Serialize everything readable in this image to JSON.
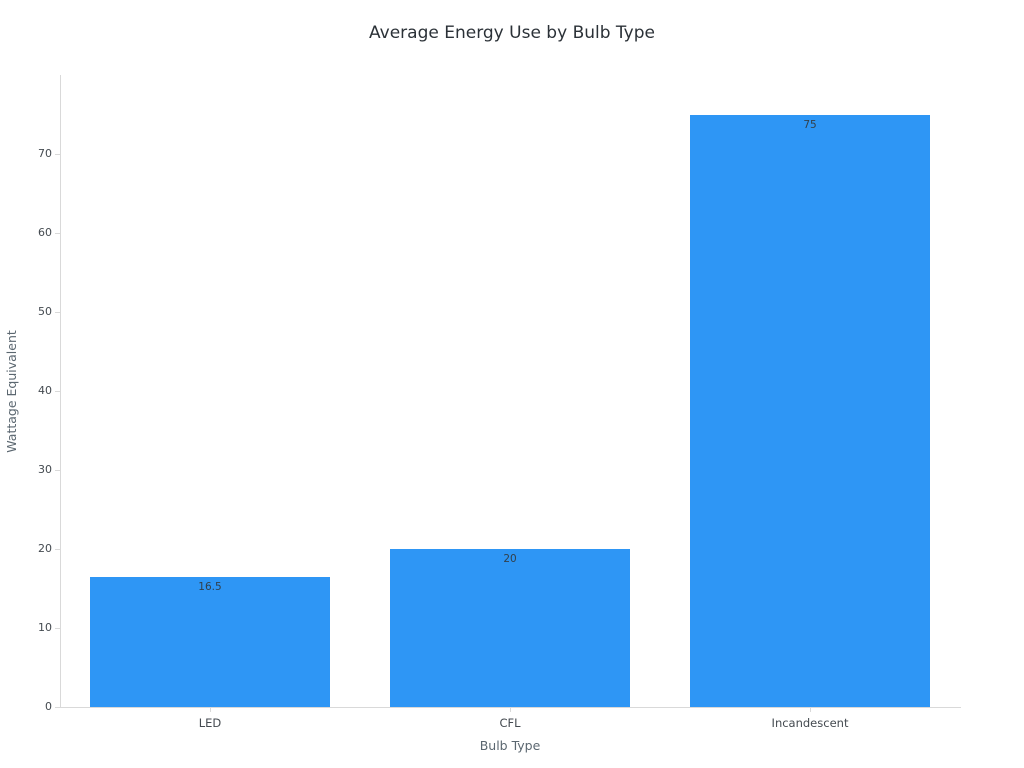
{
  "chart_data": {
    "type": "bar",
    "title": "Average Energy Use by Bulb Type",
    "xlabel": "Bulb Type",
    "ylabel": "Wattage Equivalent",
    "categories": [
      "LED",
      "CFL",
      "Incandescent"
    ],
    "values": [
      16.5,
      20,
      75
    ],
    "value_labels": [
      "16.5",
      "20",
      "75"
    ],
    "yticks": [
      0,
      10,
      20,
      30,
      40,
      50,
      60,
      70
    ],
    "ylim": [
      0,
      80
    ],
    "grid": false,
    "legend": false,
    "bar_color": "#2e96f5",
    "background_color": "#ffffff",
    "axis_color": "#d9d9d9"
  }
}
